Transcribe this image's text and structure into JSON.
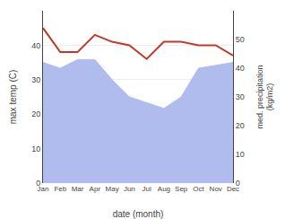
{
  "chart_data": {
    "type": "line",
    "categories": [
      "Jan",
      "Feb",
      "Mar",
      "Apr",
      "May",
      "Jun",
      "Jul",
      "Aug",
      "Sep",
      "Oct",
      "Nov",
      "Dec"
    ],
    "xlabel": "date (month)",
    "ylabel": "max temp (C)",
    "y2label": "med. precipitation\n(kg/m2)",
    "series": [
      {
        "type": "area",
        "axis": "y2",
        "color": "#b0bcee",
        "values": [
          42,
          40,
          43,
          43,
          36,
          30,
          28,
          26,
          30,
          40,
          41,
          42
        ]
      },
      {
        "type": "line",
        "color": "#c0392b",
        "values": [
          45,
          38,
          38,
          43,
          41,
          40,
          36,
          41,
          41,
          40,
          40,
          37
        ]
      }
    ],
    "ylim": [
      0,
      50
    ],
    "yticks": [
      0,
      10,
      20,
      30,
      40
    ],
    "y2lim": [
      0,
      60
    ],
    "y2ticks": [
      0,
      10,
      20,
      30,
      40,
      50
    ],
    "grid": true
  }
}
